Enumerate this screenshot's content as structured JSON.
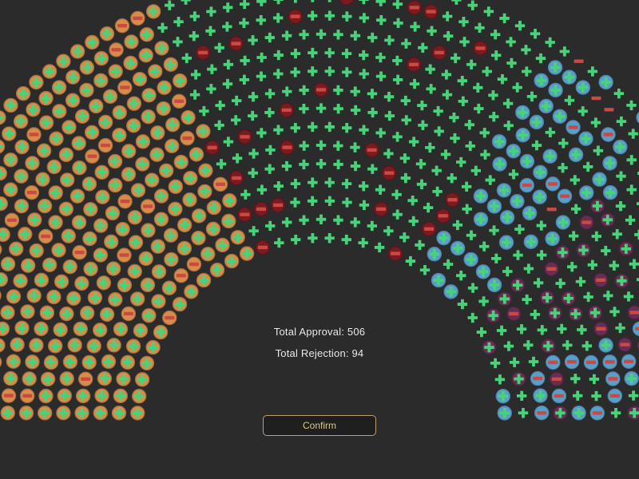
{
  "tally": {
    "approval_label": "Total Approval:",
    "approval_value": 506,
    "approval_text": "Total Approval: 506",
    "rejection_label": "Total Rejection:",
    "rejection_value": 94,
    "rejection_text": "Total Rejection: 94"
  },
  "confirm_button": {
    "label": "Confirm"
  },
  "seat_icons": {
    "approve": "plus-icon",
    "reject": "minus-icon"
  },
  "colors": {
    "background": "#2b2b2b",
    "approve_mark": "#48d27a",
    "reject_mark_bar": "#c94a43",
    "reject_seat": "#7a1b22",
    "party_orange": "#d98b4a",
    "party_blue": "#5b9ec9",
    "party_purple": "#6a2d52",
    "button_border": "#b9a36a",
    "button_text": "#d8c48f"
  }
}
